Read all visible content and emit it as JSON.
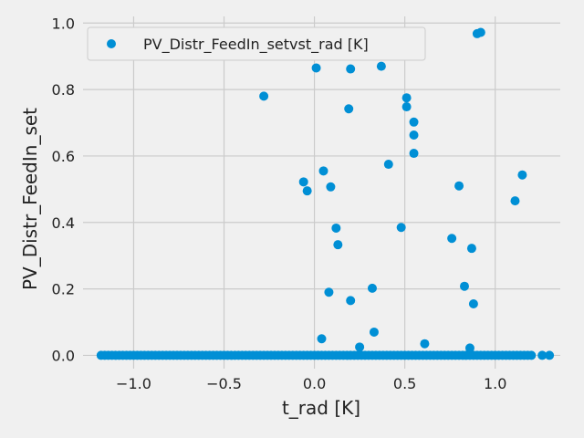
{
  "chart_data": {
    "type": "scatter",
    "xlabel": "t_rad [K]",
    "ylabel": "PV_Distr_FeedIn_set",
    "xlim": [
      -1.28,
      1.36
    ],
    "ylim": [
      -0.04,
      1.02
    ],
    "grid": true,
    "legend_position": "top-left",
    "colors": {
      "background": "#f0f0f0",
      "grid": "#cbcbcb",
      "marker": "#008fd5"
    },
    "x_ticks": [
      {
        "value": -1.0,
        "label": "−1.0"
      },
      {
        "value": -0.5,
        "label": "−0.5"
      },
      {
        "value": 0.0,
        "label": "0.0"
      },
      {
        "value": 0.5,
        "label": "0.5"
      },
      {
        "value": 1.0,
        "label": "1.0"
      }
    ],
    "y_ticks": [
      {
        "value": 0.0,
        "label": "0.0"
      },
      {
        "value": 0.2,
        "label": "0.2"
      },
      {
        "value": 0.4,
        "label": "0.4"
      },
      {
        "value": 0.6,
        "label": "0.6"
      },
      {
        "value": 0.8,
        "label": "0.8"
      },
      {
        "value": 1.0,
        "label": "1.0"
      }
    ],
    "series": [
      {
        "name": "PV_Distr_FeedIn_setvst_rad [K]",
        "baseline_points": [
          [
            -1.18,
            0
          ],
          [
            -1.16,
            0
          ],
          [
            -1.14,
            0
          ],
          [
            -1.12,
            0
          ],
          [
            -1.1,
            0
          ],
          [
            -1.08,
            0
          ],
          [
            -1.06,
            0
          ],
          [
            -1.04,
            0
          ],
          [
            -1.02,
            0
          ],
          [
            -1.0,
            0
          ],
          [
            -0.98,
            0
          ],
          [
            -0.96,
            0
          ],
          [
            -0.94,
            0
          ],
          [
            -0.92,
            0
          ],
          [
            -0.9,
            0
          ],
          [
            -0.88,
            0
          ],
          [
            -0.86,
            0
          ],
          [
            -0.84,
            0
          ],
          [
            -0.82,
            0
          ],
          [
            -0.8,
            0
          ],
          [
            -0.78,
            0
          ],
          [
            -0.76,
            0
          ],
          [
            -0.74,
            0
          ],
          [
            -0.72,
            0
          ],
          [
            -0.7,
            0
          ],
          [
            -0.68,
            0
          ],
          [
            -0.66,
            0
          ],
          [
            -0.64,
            0
          ],
          [
            -0.62,
            0
          ],
          [
            -0.6,
            0
          ],
          [
            -0.58,
            0
          ],
          [
            -0.56,
            0
          ],
          [
            -0.54,
            0
          ],
          [
            -0.52,
            0
          ],
          [
            -0.5,
            0
          ],
          [
            -0.48,
            0
          ],
          [
            -0.46,
            0
          ],
          [
            -0.44,
            0
          ],
          [
            -0.42,
            0
          ],
          [
            -0.4,
            0
          ],
          [
            -0.38,
            0
          ],
          [
            -0.36,
            0
          ],
          [
            -0.34,
            0
          ],
          [
            -0.32,
            0
          ],
          [
            -0.3,
            0
          ],
          [
            -0.28,
            0
          ],
          [
            -0.26,
            0
          ],
          [
            -0.24,
            0
          ],
          [
            -0.22,
            0
          ],
          [
            -0.2,
            0
          ],
          [
            -0.18,
            0
          ],
          [
            -0.16,
            0
          ],
          [
            -0.14,
            0
          ],
          [
            -0.12,
            0
          ],
          [
            -0.1,
            0
          ],
          [
            -0.08,
            0
          ],
          [
            -0.06,
            0
          ],
          [
            -0.04,
            0
          ],
          [
            -0.02,
            0
          ],
          [
            0.0,
            0
          ],
          [
            0.02,
            0
          ],
          [
            0.04,
            0
          ],
          [
            0.06,
            0
          ],
          [
            0.08,
            0
          ],
          [
            0.1,
            0
          ],
          [
            0.12,
            0
          ],
          [
            0.14,
            0
          ],
          [
            0.16,
            0
          ],
          [
            0.18,
            0
          ],
          [
            0.2,
            0
          ],
          [
            0.22,
            0
          ],
          [
            0.24,
            0
          ],
          [
            0.26,
            0
          ],
          [
            0.28,
            0
          ],
          [
            0.3,
            0
          ],
          [
            0.32,
            0
          ],
          [
            0.34,
            0
          ],
          [
            0.36,
            0
          ],
          [
            0.38,
            0
          ],
          [
            0.4,
            0
          ],
          [
            0.42,
            0
          ],
          [
            0.44,
            0
          ],
          [
            0.46,
            0
          ],
          [
            0.48,
            0
          ],
          [
            0.5,
            0
          ],
          [
            0.52,
            0
          ],
          [
            0.54,
            0
          ],
          [
            0.56,
            0
          ],
          [
            0.58,
            0
          ],
          [
            0.6,
            0
          ],
          [
            0.62,
            0
          ],
          [
            0.64,
            0
          ],
          [
            0.66,
            0
          ],
          [
            0.68,
            0
          ],
          [
            0.7,
            0
          ],
          [
            0.72,
            0
          ],
          [
            0.74,
            0
          ],
          [
            0.76,
            0
          ],
          [
            0.78,
            0
          ],
          [
            0.8,
            0
          ],
          [
            0.82,
            0
          ],
          [
            0.84,
            0
          ],
          [
            0.86,
            0
          ],
          [
            0.88,
            0
          ],
          [
            0.9,
            0
          ],
          [
            0.92,
            0
          ],
          [
            0.94,
            0
          ],
          [
            0.96,
            0
          ],
          [
            0.98,
            0
          ],
          [
            1.0,
            0
          ],
          [
            1.02,
            0
          ],
          [
            1.04,
            0
          ],
          [
            1.06,
            0
          ],
          [
            1.08,
            0
          ],
          [
            1.1,
            0
          ],
          [
            1.12,
            0
          ],
          [
            1.14,
            0
          ],
          [
            1.16,
            0
          ],
          [
            1.18,
            0
          ],
          [
            1.2,
            0
          ],
          [
            1.26,
            0
          ],
          [
            1.3,
            0
          ]
        ],
        "points": [
          [
            -0.28,
            0.78
          ],
          [
            0.01,
            0.865
          ],
          [
            0.2,
            0.862
          ],
          [
            0.37,
            0.87
          ],
          [
            0.19,
            0.742
          ],
          [
            0.51,
            0.775
          ],
          [
            0.51,
            0.748
          ],
          [
            0.55,
            0.702
          ],
          [
            0.55,
            0.663
          ],
          [
            0.55,
            0.608
          ],
          [
            0.41,
            0.575
          ],
          [
            0.05,
            0.555
          ],
          [
            -0.06,
            0.522
          ],
          [
            -0.04,
            0.495
          ],
          [
            0.09,
            0.507
          ],
          [
            0.12,
            0.383
          ],
          [
            0.13,
            0.333
          ],
          [
            0.48,
            0.385
          ],
          [
            0.08,
            0.19
          ],
          [
            0.2,
            0.165
          ],
          [
            0.32,
            0.202
          ],
          [
            0.33,
            0.07
          ],
          [
            0.04,
            0.05
          ],
          [
            0.25,
            0.025
          ],
          [
            0.61,
            0.035
          ],
          [
            0.76,
            0.352
          ],
          [
            0.8,
            0.51
          ],
          [
            0.83,
            0.208
          ],
          [
            0.87,
            0.322
          ],
          [
            0.88,
            0.155
          ],
          [
            0.86,
            0.022
          ],
          [
            0.9,
            0.968
          ],
          [
            0.92,
            0.972
          ],
          [
            1.11,
            0.465
          ],
          [
            1.15,
            0.543
          ]
        ]
      }
    ]
  }
}
